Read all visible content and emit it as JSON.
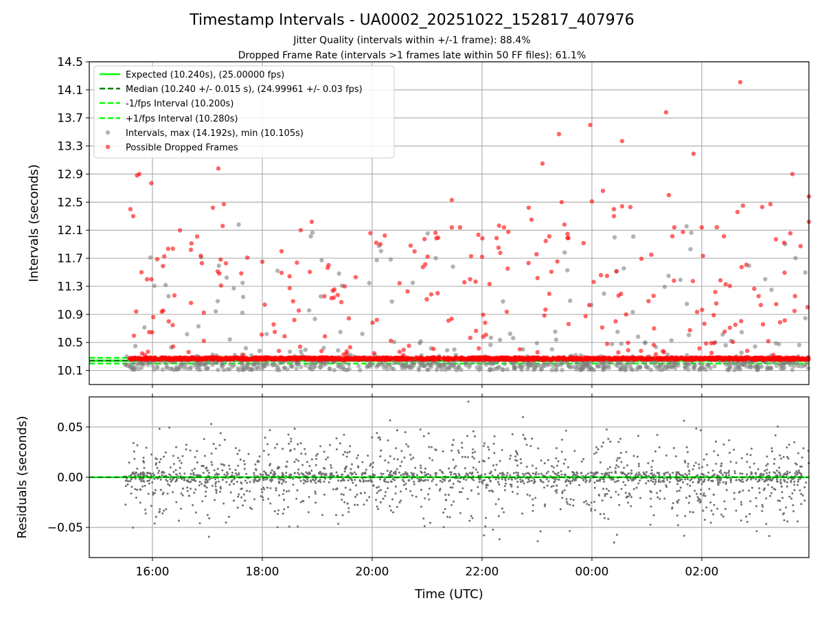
{
  "colors": {
    "expected": "#00ff00",
    "median": "#008000",
    "band": "#00ff00",
    "intervals": "#808080",
    "dropped": "#ff0000",
    "residuals": "#707070",
    "grid": "#b0b0b0"
  },
  "chart_data": [
    {
      "type": "scatter",
      "title": "Timestamp Intervals - UA0002_20251022_152817_407976",
      "subtitle_1": "Jitter Quality (intervals within +/-1 frame): 88.4%",
      "subtitle_2": "Dropped Frame Rate (intervals >1 frames late within 50 FF files): 61.1%",
      "xlabel": "",
      "ylabel": "Intervals (seconds)",
      "x_range_hours": [
        14.85,
        27.95
      ],
      "ylim": [
        9.9,
        14.5
      ],
      "y_ticks": [
        "10.1",
        "10.5",
        "10.9",
        "11.3",
        "11.7",
        "12.1",
        "12.5",
        "12.9",
        "13.3",
        "13.7",
        "14.1",
        "14.5"
      ],
      "grid": true,
      "legend_position": "upper-left",
      "legend": [
        {
          "label": "Expected (10.240s), (25.00000 fps)",
          "style": "solid-line",
          "color": "#00ff00"
        },
        {
          "label": "Median (10.240 +/- 0.015 s), (24.99961 +/- 0.03 fps)",
          "style": "dashed-line",
          "color": "#008000"
        },
        {
          "label": "-1/fps Interval (10.200s)",
          "style": "dashed-line",
          "color": "#00ff00"
        },
        {
          "label": "+1/fps Interval (10.280s)",
          "style": "dashed-line",
          "color": "#00ff00"
        },
        {
          "label": "Intervals, max (14.192s), min (10.105s)",
          "style": "marker",
          "color": "#808080"
        },
        {
          "label": "Possible Dropped Frames",
          "style": "marker",
          "color": "#ff0000"
        }
      ],
      "reference_lines": {
        "expected": 10.24,
        "median": 10.24,
        "minus_1fps": 10.2,
        "plus_1fps": 10.28
      },
      "series": [
        {
          "name": "Intervals, max (14.192s), min (10.105s)",
          "x_start_hour": 15.48,
          "x_end_hour": 27.95,
          "baseline_min": 10.105,
          "baseline_max": 10.26,
          "max": 14.192,
          "min": 10.105
        },
        {
          "name": "Possible Dropped Frames",
          "baseline": 10.27,
          "notable_points": [
            [
              15.6,
              12.4
            ],
            [
              15.65,
              12.3
            ],
            [
              15.72,
              12.88
            ],
            [
              15.76,
              12.9
            ],
            [
              15.8,
              11.5
            ],
            [
              15.9,
              11.4
            ],
            [
              15.98,
              12.77
            ],
            [
              15.98,
              11.4
            ],
            [
              16.4,
              11.17
            ],
            [
              16.7,
              11.82
            ],
            [
              16.9,
              11.63
            ],
            [
              17.1,
              12.42
            ],
            [
              17.2,
              12.98
            ],
            [
              17.3,
              12.47
            ],
            [
              18.0,
              11.65
            ],
            [
              18.35,
              11.8
            ],
            [
              18.7,
              12.1
            ],
            [
              18.9,
              12.22
            ],
            [
              19.5,
              11.3
            ],
            [
              19.7,
              11.43
            ],
            [
              20.15,
              11.9
            ],
            [
              20.7,
              11.88
            ],
            [
              21.45,
              12.53
            ],
            [
              21.45,
              12.14
            ],
            [
              21.6,
              12.14
            ],
            [
              21.8,
              11.73
            ],
            [
              22.0,
              11.72
            ],
            [
              22.3,
              11.85
            ],
            [
              22.4,
              12.14
            ],
            [
              22.85,
              12.42
            ],
            [
              22.9,
              12.25
            ],
            [
              23.1,
              13.05
            ],
            [
              23.4,
              13.47
            ],
            [
              23.45,
              12.5
            ],
            [
              23.5,
              12.18
            ],
            [
              23.97,
              13.6
            ],
            [
              24.0,
              12.51
            ],
            [
              24.2,
              12.66
            ],
            [
              24.4,
              12.4
            ],
            [
              24.4,
              12.3
            ],
            [
              24.55,
              13.37
            ],
            [
              24.55,
              12.44
            ],
            [
              24.7,
              12.43
            ],
            [
              25.35,
              13.78
            ],
            [
              25.4,
              12.6
            ],
            [
              25.5,
              12.14
            ],
            [
              25.85,
              13.19
            ],
            [
              26.0,
              12.14
            ],
            [
              26.65,
              12.36
            ],
            [
              26.7,
              14.21
            ],
            [
              26.75,
              12.45
            ],
            [
              27.1,
              12.43
            ],
            [
              27.25,
              12.47
            ],
            [
              27.35,
              11.97
            ],
            [
              27.65,
              12.9
            ],
            [
              27.95,
              12.58
            ],
            [
              27.95,
              12.22
            ]
          ]
        }
      ]
    },
    {
      "type": "scatter",
      "title": "",
      "xlabel": "Time (UTC)",
      "ylabel": "Residuals (seconds)",
      "x_range_hours": [
        14.85,
        27.95
      ],
      "x_ticks": [
        {
          "hour": 16,
          "label": "16:00"
        },
        {
          "hour": 18,
          "label": "18:00"
        },
        {
          "hour": 20,
          "label": "20:00"
        },
        {
          "hour": 22,
          "label": "22:00"
        },
        {
          "hour": 24,
          "label": "00:00"
        },
        {
          "hour": 26,
          "label": "02:00"
        }
      ],
      "ylim": [
        -0.08,
        0.08
      ],
      "y_ticks": [
        "0.05",
        "0.00",
        "−0.05"
      ],
      "y_tick_values": [
        0.05,
        0.0,
        -0.05
      ],
      "grid": true,
      "reference_lines": {
        "zero": 0.0
      },
      "series": [
        {
          "name": "Residuals",
          "x_start_hour": 15.48,
          "x_end_hour": 27.95,
          "spread_sd": 0.022,
          "range": [
            -0.08,
            0.078
          ]
        }
      ]
    }
  ]
}
